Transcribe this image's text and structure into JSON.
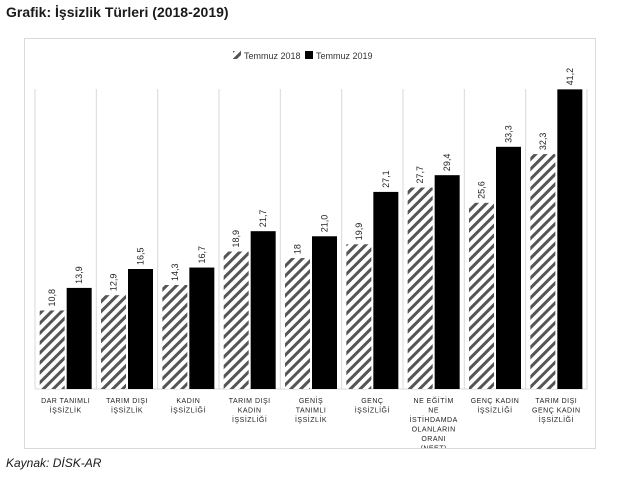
{
  "title": "Grafik: İşsizlik Türleri (2018-2019)",
  "source": "Kaynak: DİSK-AR",
  "colors": {
    "series_2019": "#000000",
    "hatch": "#555555",
    "axis": "#d9d9d9"
  },
  "chart_data": {
    "type": "bar",
    "categories": [
      [
        "DAR TANIMLI",
        "İŞSİZLİK"
      ],
      [
        "TARIM DIŞI",
        "İŞSİZLİK"
      ],
      [
        "KADIN",
        "İŞSİZLİĞİ"
      ],
      [
        "TARIM DIŞI",
        "KADIN",
        "İŞSİZLİĞİ"
      ],
      [
        "GENİŞ",
        "TANIMLI",
        "İŞSİZLİK"
      ],
      [
        "GENÇ",
        "İŞSİZLİĞİ"
      ],
      [
        "NE EĞİTİM",
        "NE",
        "İSTİHDAMDA",
        "OLANLARIN",
        "ORANI",
        "(NEET)"
      ],
      [
        "GENÇ KADIN",
        "İŞSİZLİĞİ"
      ],
      [
        "TARIM DIŞI",
        "GENÇ KADIN",
        "İŞSİZLİĞİ"
      ]
    ],
    "series": [
      {
        "name": "Temmuz 2018",
        "values": [
          10.8,
          12.9,
          14.3,
          18.9,
          18,
          19.9,
          27.7,
          25.6,
          32.3
        ],
        "labels": [
          "10,8",
          "12,9",
          "14,3",
          "18,9",
          "18",
          "19,9",
          "27,7",
          "25,6",
          "32,3"
        ]
      },
      {
        "name": "Temmuz 2019",
        "values": [
          13.9,
          16.5,
          16.7,
          21.7,
          21.0,
          27.1,
          29.4,
          33.3,
          41.2
        ],
        "labels": [
          "13,9",
          "16,5",
          "16,7",
          "21,7",
          "21,0",
          "27,1",
          "29,4",
          "33,3",
          "41,2"
        ]
      }
    ],
    "ylim": [
      0,
      44
    ],
    "legend": "top-center",
    "grid": "vertical category separators"
  }
}
